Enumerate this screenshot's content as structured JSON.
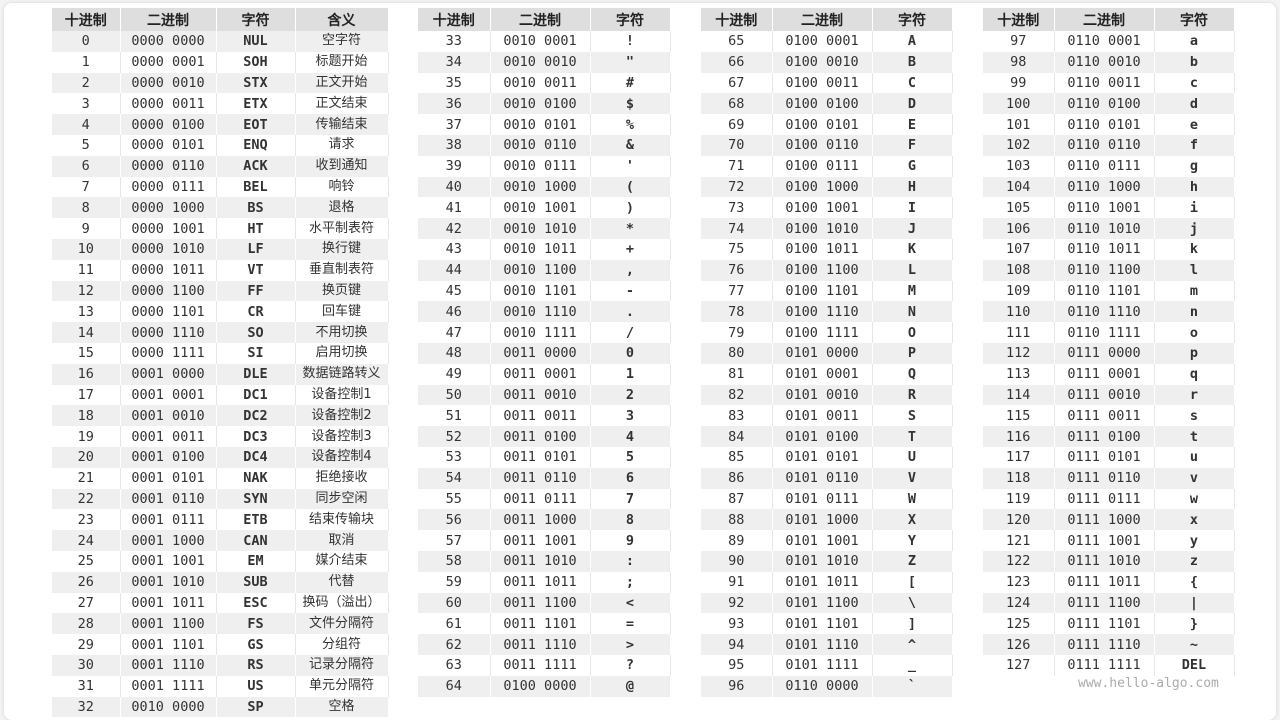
{
  "headers": {
    "dec": "十进制",
    "bin": "二进制",
    "char": "字符",
    "meaning": "含义"
  },
  "watermark": "www.hello-algo.com",
  "table1": [
    [
      "0",
      "0000 0000",
      "NUL",
      "空字符"
    ],
    [
      "1",
      "0000 0001",
      "SOH",
      "标题开始"
    ],
    [
      "2",
      "0000 0010",
      "STX",
      "正文开始"
    ],
    [
      "3",
      "0000 0011",
      "ETX",
      "正文结束"
    ],
    [
      "4",
      "0000 0100",
      "EOT",
      "传输结束"
    ],
    [
      "5",
      "0000 0101",
      "ENQ",
      "请求"
    ],
    [
      "6",
      "0000 0110",
      "ACK",
      "收到通知"
    ],
    [
      "7",
      "0000 0111",
      "BEL",
      "响铃"
    ],
    [
      "8",
      "0000 1000",
      "BS",
      "退格"
    ],
    [
      "9",
      "0000 1001",
      "HT",
      "水平制表符"
    ],
    [
      "10",
      "0000 1010",
      "LF",
      "换行键"
    ],
    [
      "11",
      "0000 1011",
      "VT",
      "垂直制表符"
    ],
    [
      "12",
      "0000 1100",
      "FF",
      "换页键"
    ],
    [
      "13",
      "0000 1101",
      "CR",
      "回车键"
    ],
    [
      "14",
      "0000 1110",
      "SO",
      "不用切换"
    ],
    [
      "15",
      "0000 1111",
      "SI",
      "启用切换"
    ],
    [
      "16",
      "0001 0000",
      "DLE",
      "数据链路转义"
    ],
    [
      "17",
      "0001 0001",
      "DC1",
      "设备控制1"
    ],
    [
      "18",
      "0001 0010",
      "DC2",
      "设备控制2"
    ],
    [
      "19",
      "0001 0011",
      "DC3",
      "设备控制3"
    ],
    [
      "20",
      "0001 0100",
      "DC4",
      "设备控制4"
    ],
    [
      "21",
      "0001 0101",
      "NAK",
      "拒绝接收"
    ],
    [
      "22",
      "0001 0110",
      "SYN",
      "同步空闲"
    ],
    [
      "23",
      "0001 0111",
      "ETB",
      "结束传输块"
    ],
    [
      "24",
      "0001 1000",
      "CAN",
      "取消"
    ],
    [
      "25",
      "0001 1001",
      "EM",
      "媒介结束"
    ],
    [
      "26",
      "0001 1010",
      "SUB",
      "代替"
    ],
    [
      "27",
      "0001 1011",
      "ESC",
      "换码（溢出）"
    ],
    [
      "28",
      "0001 1100",
      "FS",
      "文件分隔符"
    ],
    [
      "29",
      "0001 1101",
      "GS",
      "分组符"
    ],
    [
      "30",
      "0001 1110",
      "RS",
      "记录分隔符"
    ],
    [
      "31",
      "0001 1111",
      "US",
      "单元分隔符"
    ],
    [
      "32",
      "0010 0000",
      "SP",
      "空格"
    ]
  ],
  "table2": [
    [
      "33",
      "0010 0001",
      "!"
    ],
    [
      "34",
      "0010 0010",
      "\""
    ],
    [
      "35",
      "0010 0011",
      "#"
    ],
    [
      "36",
      "0010 0100",
      "$"
    ],
    [
      "37",
      "0010 0101",
      "%"
    ],
    [
      "38",
      "0010 0110",
      "&"
    ],
    [
      "39",
      "0010 0111",
      "'"
    ],
    [
      "40",
      "0010 1000",
      "("
    ],
    [
      "41",
      "0010 1001",
      ")"
    ],
    [
      "42",
      "0010 1010",
      "*"
    ],
    [
      "43",
      "0010 1011",
      "+"
    ],
    [
      "44",
      "0010 1100",
      ","
    ],
    [
      "45",
      "0010 1101",
      "-"
    ],
    [
      "46",
      "0010 1110",
      "."
    ],
    [
      "47",
      "0010 1111",
      "/"
    ],
    [
      "48",
      "0011 0000",
      "0"
    ],
    [
      "49",
      "0011 0001",
      "1"
    ],
    [
      "50",
      "0011 0010",
      "2"
    ],
    [
      "51",
      "0011 0011",
      "3"
    ],
    [
      "52",
      "0011 0100",
      "4"
    ],
    [
      "53",
      "0011 0101",
      "5"
    ],
    [
      "54",
      "0011 0110",
      "6"
    ],
    [
      "55",
      "0011 0111",
      "7"
    ],
    [
      "56",
      "0011 1000",
      "8"
    ],
    [
      "57",
      "0011 1001",
      "9"
    ],
    [
      "58",
      "0011 1010",
      ":"
    ],
    [
      "59",
      "0011 1011",
      ";"
    ],
    [
      "60",
      "0011 1100",
      "<"
    ],
    [
      "61",
      "0011 1101",
      "="
    ],
    [
      "62",
      "0011 1110",
      ">"
    ],
    [
      "63",
      "0011 1111",
      "?"
    ],
    [
      "64",
      "0100 0000",
      "@"
    ]
  ],
  "table3": [
    [
      "65",
      "0100 0001",
      "A"
    ],
    [
      "66",
      "0100 0010",
      "B"
    ],
    [
      "67",
      "0100 0011",
      "C"
    ],
    [
      "68",
      "0100 0100",
      "D"
    ],
    [
      "69",
      "0100 0101",
      "E"
    ],
    [
      "70",
      "0100 0110",
      "F"
    ],
    [
      "71",
      "0100 0111",
      "G"
    ],
    [
      "72",
      "0100 1000",
      "H"
    ],
    [
      "73",
      "0100 1001",
      "I"
    ],
    [
      "74",
      "0100 1010",
      "J"
    ],
    [
      "75",
      "0100 1011",
      "K"
    ],
    [
      "76",
      "0100 1100",
      "L"
    ],
    [
      "77",
      "0100 1101",
      "M"
    ],
    [
      "78",
      "0100 1110",
      "N"
    ],
    [
      "79",
      "0100 1111",
      "O"
    ],
    [
      "80",
      "0101 0000",
      "P"
    ],
    [
      "81",
      "0101 0001",
      "Q"
    ],
    [
      "82",
      "0101 0010",
      "R"
    ],
    [
      "83",
      "0101 0011",
      "S"
    ],
    [
      "84",
      "0101 0100",
      "T"
    ],
    [
      "85",
      "0101 0101",
      "U"
    ],
    [
      "86",
      "0101 0110",
      "V"
    ],
    [
      "87",
      "0101 0111",
      "W"
    ],
    [
      "88",
      "0101 1000",
      "X"
    ],
    [
      "89",
      "0101 1001",
      "Y"
    ],
    [
      "90",
      "0101 1010",
      "Z"
    ],
    [
      "91",
      "0101 1011",
      "["
    ],
    [
      "92",
      "0101 1100",
      "\\"
    ],
    [
      "93",
      "0101 1101",
      "]"
    ],
    [
      "94",
      "0101 1110",
      "^"
    ],
    [
      "95",
      "0101 1111",
      "_"
    ],
    [
      "96",
      "0110 0000",
      "`"
    ]
  ],
  "table4": [
    [
      "97",
      "0110 0001",
      "a"
    ],
    [
      "98",
      "0110 0010",
      "b"
    ],
    [
      "99",
      "0110 0011",
      "c"
    ],
    [
      "100",
      "0110 0100",
      "d"
    ],
    [
      "101",
      "0110 0101",
      "e"
    ],
    [
      "102",
      "0110 0110",
      "f"
    ],
    [
      "103",
      "0110 0111",
      "g"
    ],
    [
      "104",
      "0110 1000",
      "h"
    ],
    [
      "105",
      "0110 1001",
      "i"
    ],
    [
      "106",
      "0110 1010",
      "j"
    ],
    [
      "107",
      "0110 1011",
      "k"
    ],
    [
      "108",
      "0110 1100",
      "l"
    ],
    [
      "109",
      "0110 1101",
      "m"
    ],
    [
      "110",
      "0110 1110",
      "n"
    ],
    [
      "111",
      "0110 1111",
      "o"
    ],
    [
      "112",
      "0111 0000",
      "p"
    ],
    [
      "113",
      "0111 0001",
      "q"
    ],
    [
      "114",
      "0111 0010",
      "r"
    ],
    [
      "115",
      "0111 0011",
      "s"
    ],
    [
      "116",
      "0111 0100",
      "t"
    ],
    [
      "117",
      "0111 0101",
      "u"
    ],
    [
      "118",
      "0111 0110",
      "v"
    ],
    [
      "119",
      "0111 0111",
      "w"
    ],
    [
      "120",
      "0111 1000",
      "x"
    ],
    [
      "121",
      "0111 1001",
      "y"
    ],
    [
      "122",
      "0111 1010",
      "z"
    ],
    [
      "123",
      "0111 1011",
      "{"
    ],
    [
      "124",
      "0111 1100",
      "|"
    ],
    [
      "125",
      "0111 1101",
      "}"
    ],
    [
      "126",
      "0111 1110",
      "~"
    ],
    [
      "127",
      "0111 1111",
      "DEL"
    ]
  ]
}
